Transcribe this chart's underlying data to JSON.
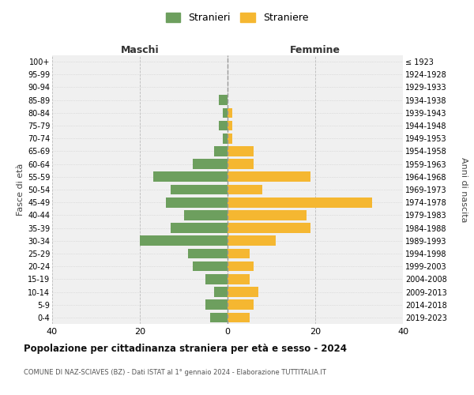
{
  "age_groups": [
    "0-4",
    "5-9",
    "10-14",
    "15-19",
    "20-24",
    "25-29",
    "30-34",
    "35-39",
    "40-44",
    "45-49",
    "50-54",
    "55-59",
    "60-64",
    "65-69",
    "70-74",
    "75-79",
    "80-84",
    "85-89",
    "90-94",
    "95-99",
    "100+"
  ],
  "birth_years": [
    "2019-2023",
    "2014-2018",
    "2009-2013",
    "2004-2008",
    "1999-2003",
    "1994-1998",
    "1989-1993",
    "1984-1988",
    "1979-1983",
    "1974-1978",
    "1969-1973",
    "1964-1968",
    "1959-1963",
    "1954-1958",
    "1949-1953",
    "1944-1948",
    "1939-1943",
    "1934-1938",
    "1929-1933",
    "1924-1928",
    "≤ 1923"
  ],
  "maschi": [
    4,
    5,
    3,
    5,
    8,
    9,
    20,
    13,
    10,
    14,
    13,
    17,
    8,
    3,
    1,
    2,
    1,
    2,
    0,
    0,
    0
  ],
  "femmine": [
    5,
    6,
    7,
    5,
    6,
    5,
    11,
    19,
    18,
    33,
    8,
    19,
    6,
    6,
    1,
    1,
    1,
    0,
    0,
    0,
    0
  ],
  "male_color": "#6d9f5e",
  "female_color": "#f5b731",
  "background_color": "#f0f0f0",
  "grid_color": "#cccccc",
  "title": "Popolazione per cittadinanza straniera per età e sesso - 2024",
  "subtitle": "COMUNE DI NAZ-SCIAVES (BZ) - Dati ISTAT al 1° gennaio 2024 - Elaborazione TUTTITALIA.IT",
  "xlabel_left": "Maschi",
  "xlabel_right": "Femmine",
  "ylabel_left": "Fasce di età",
  "ylabel_right": "Anni di nascita",
  "legend_male": "Stranieri",
  "legend_female": "Straniere",
  "xlim": 40
}
